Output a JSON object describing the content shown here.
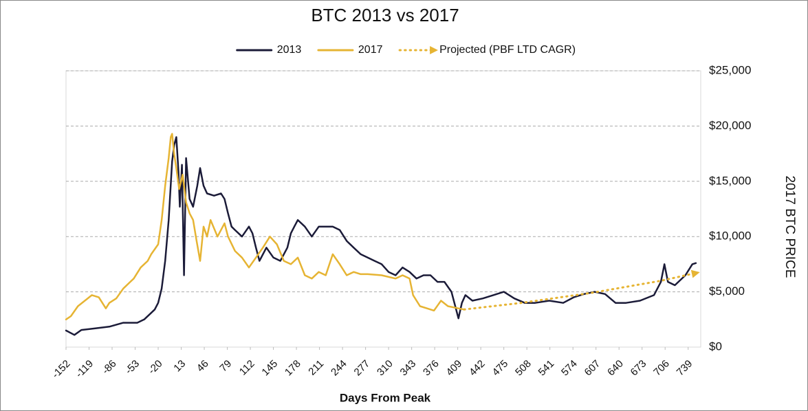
{
  "chart_data": {
    "type": "line",
    "title": "BTC 2013 vs 2017",
    "x_label": "Days From Peak",
    "y_label": "2017 BTC PRICE",
    "xlim": [
      -152,
      757
    ],
    "xticks": [
      -152,
      -119,
      -86,
      -53,
      -20,
      13,
      46,
      79,
      112,
      145,
      178,
      211,
      244,
      277,
      310,
      343,
      376,
      409,
      442,
      475,
      508,
      541,
      574,
      607,
      640,
      673,
      706,
      739
    ],
    "ylim": [
      0,
      25000
    ],
    "yticks": [
      {
        "value": 0,
        "label": "$0"
      },
      {
        "value": 5000,
        "label": "$5,000"
      },
      {
        "value": 10000,
        "label": "$10,000"
      },
      {
        "value": 15000,
        "label": "$15,000"
      },
      {
        "value": 20000,
        "label": "$20,000"
      },
      {
        "value": 25000,
        "label": "$25,000"
      }
    ],
    "y_axis_side": "right",
    "grid": true,
    "legend": "top",
    "series": [
      {
        "name": "2013",
        "color": "#1b1b38",
        "dash": "solid",
        "x": [
          -152,
          -140,
          -130,
          -110,
          -90,
          -70,
          -50,
          -40,
          -30,
          -25,
          -20,
          -15,
          -10,
          -5,
          0,
          3,
          6,
          9,
          11,
          14,
          17,
          20,
          25,
          30,
          36,
          40,
          45,
          50,
          60,
          70,
          75,
          80,
          85,
          90,
          100,
          110,
          115,
          120,
          125,
          135,
          145,
          155,
          165,
          170,
          175,
          180,
          190,
          200,
          210,
          220,
          230,
          240,
          250,
          260,
          270,
          280,
          290,
          300,
          310,
          320,
          330,
          340,
          350,
          360,
          370,
          380,
          390,
          400,
          410,
          415,
          420,
          430,
          445,
          460,
          475,
          490,
          505,
          520,
          540,
          560,
          575,
          590,
          605,
          620,
          635,
          650,
          670,
          690,
          700,
          705,
          710,
          720,
          735,
          745,
          750
        ],
        "values": [
          1500,
          1100,
          1550,
          1700,
          1850,
          2200,
          2200,
          2500,
          3100,
          3400,
          4000,
          5300,
          7800,
          11500,
          16800,
          18300,
          19000,
          15900,
          12700,
          16500,
          6500,
          17100,
          13400,
          12700,
          14600,
          16200,
          14600,
          13900,
          13700,
          13900,
          13400,
          12100,
          10900,
          10600,
          10000,
          10900,
          10300,
          9000,
          7800,
          9000,
          8100,
          7800,
          9000,
          10300,
          10900,
          11500,
          10900,
          10000,
          10900,
          10900,
          10900,
          10600,
          9600,
          9000,
          8400,
          8100,
          7800,
          7500,
          6800,
          6500,
          7200,
          6800,
          6200,
          6500,
          6500,
          5900,
          5900,
          5000,
          2600,
          4000,
          4700,
          4200,
          4400,
          4700,
          5000,
          4400,
          4000,
          4000,
          4200,
          4000,
          4500,
          4800,
          5000,
          4800,
          4000,
          4000,
          4200,
          4700,
          5900,
          7500,
          5900,
          5600,
          6500,
          7500,
          7600
        ]
      },
      {
        "name": "2017",
        "color": "#e6b433",
        "dash": "solid",
        "x": [
          -152,
          -145,
          -135,
          -125,
          -115,
          -105,
          -95,
          -90,
          -80,
          -70,
          -60,
          -55,
          -45,
          -35,
          -30,
          -20,
          -15,
          -10,
          -5,
          -2,
          0,
          3,
          6,
          10,
          15,
          20,
          25,
          30,
          35,
          40,
          45,
          50,
          55,
          65,
          75,
          80,
          90,
          100,
          110,
          120,
          130,
          140,
          150,
          160,
          170,
          180,
          190,
          200,
          210,
          220,
          230,
          240,
          250,
          260,
          270,
          280,
          300,
          320,
          330,
          340,
          345,
          355,
          365,
          375,
          385,
          395,
          410,
          418
        ],
        "values": [
          2500,
          2800,
          3700,
          4200,
          4700,
          4500,
          3500,
          4000,
          4400,
          5300,
          5900,
          6200,
          7200,
          7800,
          8400,
          9300,
          11500,
          14600,
          17100,
          19000,
          19300,
          17400,
          16200,
          14300,
          15600,
          13100,
          12100,
          11500,
          9600,
          7800,
          10900,
          10000,
          11500,
          10000,
          11200,
          10000,
          8700,
          8100,
          7200,
          8100,
          9000,
          10000,
          9300,
          7800,
          7500,
          8100,
          6500,
          6200,
          6800,
          6500,
          8400,
          7500,
          6500,
          6800,
          6600,
          6600,
          6500,
          6200,
          6500,
          6200,
          4700,
          3700,
          3500,
          3300,
          4200,
          3700,
          3500,
          3400
        ]
      },
      {
        "name": "Projected (PBF LTD CAGR)",
        "color": "#e6b433",
        "dash": "dotted",
        "x": [
          418,
          500,
          600,
          700,
          750
        ],
        "values": [
          3400,
          4000,
          4900,
          6000,
          6700
        ]
      }
    ]
  }
}
